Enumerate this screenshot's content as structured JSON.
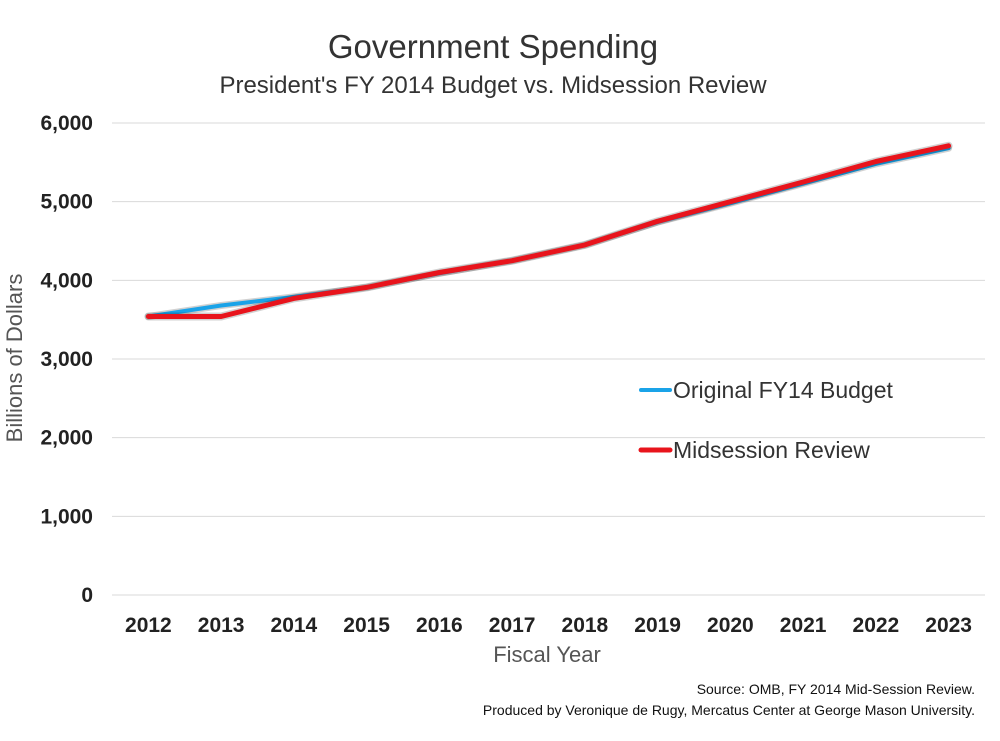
{
  "chart_data": {
    "type": "line",
    "title": "Government Spending",
    "subtitle": "President's FY 2014 Budget vs. Midsession Review",
    "xlabel": "Fiscal Year",
    "ylabel": "Billions of Dollars",
    "categories": [
      "2012",
      "2013",
      "2014",
      "2015",
      "2016",
      "2017",
      "2018",
      "2019",
      "2020",
      "2021",
      "2022",
      "2023"
    ],
    "ylim": [
      0,
      6000
    ],
    "yticks": [
      0,
      1000,
      2000,
      3000,
      4000,
      5000,
      6000
    ],
    "ytick_labels": [
      "0",
      "1,000",
      "2,000",
      "3,000",
      "4,000",
      "5,000",
      "6,000"
    ],
    "grid": true,
    "legend_position": "right-middle",
    "series": [
      {
        "name": "Original FY14 Budget",
        "color": "#1aa3e8",
        "values": [
          3540,
          3680,
          3790,
          3910,
          4090,
          4250,
          4450,
          4740,
          4980,
          5230,
          5480,
          5680
        ]
      },
      {
        "name": "Midsession Review",
        "color": "#e8141c",
        "values": [
          3540,
          3540,
          3770,
          3910,
          4100,
          4250,
          4450,
          4750,
          5000,
          5250,
          5510,
          5710
        ]
      }
    ],
    "source_lines": [
      "Source: OMB, FY 2014 Mid-Session Review.",
      "Produced by Veronique de Rugy, Mercatus Center at George Mason University."
    ]
  }
}
